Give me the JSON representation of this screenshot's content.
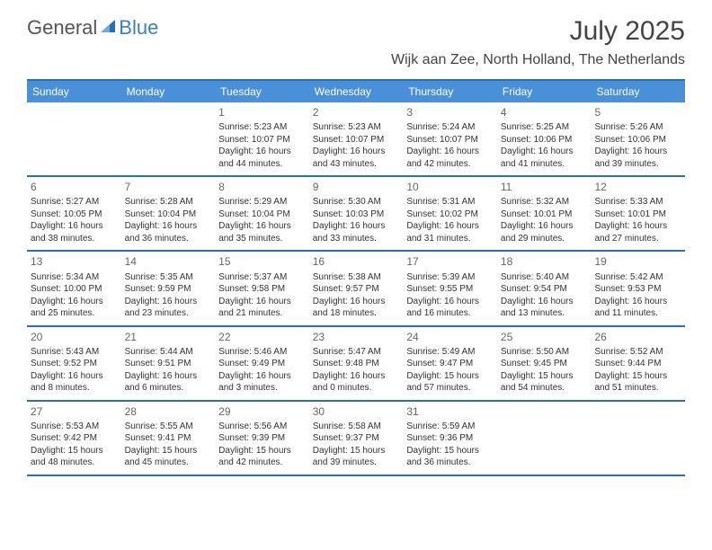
{
  "logo": {
    "text1": "General",
    "text2": "Blue"
  },
  "title": "July 2025",
  "location": "Wijk aan Zee, North Holland, The Netherlands",
  "colors": {
    "header_bg": "#4a90d9",
    "header_text": "#ffffff",
    "border": "#2a6db8",
    "logo_gray": "#555555",
    "logo_blue": "#3a7fc4",
    "title_color": "#444444",
    "cell_text": "#333333",
    "daynum_color": "#666666",
    "background": "#ffffff"
  },
  "dayNames": [
    "Sunday",
    "Monday",
    "Tuesday",
    "Wednesday",
    "Thursday",
    "Friday",
    "Saturday"
  ],
  "weeks": [
    [
      {
        "n": "",
        "sr": "",
        "ss": "",
        "dl": ""
      },
      {
        "n": "",
        "sr": "",
        "ss": "",
        "dl": ""
      },
      {
        "n": "1",
        "sr": "Sunrise: 5:23 AM",
        "ss": "Sunset: 10:07 PM",
        "dl": "Daylight: 16 hours and 44 minutes."
      },
      {
        "n": "2",
        "sr": "Sunrise: 5:23 AM",
        "ss": "Sunset: 10:07 PM",
        "dl": "Daylight: 16 hours and 43 minutes."
      },
      {
        "n": "3",
        "sr": "Sunrise: 5:24 AM",
        "ss": "Sunset: 10:07 PM",
        "dl": "Daylight: 16 hours and 42 minutes."
      },
      {
        "n": "4",
        "sr": "Sunrise: 5:25 AM",
        "ss": "Sunset: 10:06 PM",
        "dl": "Daylight: 16 hours and 41 minutes."
      },
      {
        "n": "5",
        "sr": "Sunrise: 5:26 AM",
        "ss": "Sunset: 10:06 PM",
        "dl": "Daylight: 16 hours and 39 minutes."
      }
    ],
    [
      {
        "n": "6",
        "sr": "Sunrise: 5:27 AM",
        "ss": "Sunset: 10:05 PM",
        "dl": "Daylight: 16 hours and 38 minutes."
      },
      {
        "n": "7",
        "sr": "Sunrise: 5:28 AM",
        "ss": "Sunset: 10:04 PM",
        "dl": "Daylight: 16 hours and 36 minutes."
      },
      {
        "n": "8",
        "sr": "Sunrise: 5:29 AM",
        "ss": "Sunset: 10:04 PM",
        "dl": "Daylight: 16 hours and 35 minutes."
      },
      {
        "n": "9",
        "sr": "Sunrise: 5:30 AM",
        "ss": "Sunset: 10:03 PM",
        "dl": "Daylight: 16 hours and 33 minutes."
      },
      {
        "n": "10",
        "sr": "Sunrise: 5:31 AM",
        "ss": "Sunset: 10:02 PM",
        "dl": "Daylight: 16 hours and 31 minutes."
      },
      {
        "n": "11",
        "sr": "Sunrise: 5:32 AM",
        "ss": "Sunset: 10:01 PM",
        "dl": "Daylight: 16 hours and 29 minutes."
      },
      {
        "n": "12",
        "sr": "Sunrise: 5:33 AM",
        "ss": "Sunset: 10:01 PM",
        "dl": "Daylight: 16 hours and 27 minutes."
      }
    ],
    [
      {
        "n": "13",
        "sr": "Sunrise: 5:34 AM",
        "ss": "Sunset: 10:00 PM",
        "dl": "Daylight: 16 hours and 25 minutes."
      },
      {
        "n": "14",
        "sr": "Sunrise: 5:35 AM",
        "ss": "Sunset: 9:59 PM",
        "dl": "Daylight: 16 hours and 23 minutes."
      },
      {
        "n": "15",
        "sr": "Sunrise: 5:37 AM",
        "ss": "Sunset: 9:58 PM",
        "dl": "Daylight: 16 hours and 21 minutes."
      },
      {
        "n": "16",
        "sr": "Sunrise: 5:38 AM",
        "ss": "Sunset: 9:57 PM",
        "dl": "Daylight: 16 hours and 18 minutes."
      },
      {
        "n": "17",
        "sr": "Sunrise: 5:39 AM",
        "ss": "Sunset: 9:55 PM",
        "dl": "Daylight: 16 hours and 16 minutes."
      },
      {
        "n": "18",
        "sr": "Sunrise: 5:40 AM",
        "ss": "Sunset: 9:54 PM",
        "dl": "Daylight: 16 hours and 13 minutes."
      },
      {
        "n": "19",
        "sr": "Sunrise: 5:42 AM",
        "ss": "Sunset: 9:53 PM",
        "dl": "Daylight: 16 hours and 11 minutes."
      }
    ],
    [
      {
        "n": "20",
        "sr": "Sunrise: 5:43 AM",
        "ss": "Sunset: 9:52 PM",
        "dl": "Daylight: 16 hours and 8 minutes."
      },
      {
        "n": "21",
        "sr": "Sunrise: 5:44 AM",
        "ss": "Sunset: 9:51 PM",
        "dl": "Daylight: 16 hours and 6 minutes."
      },
      {
        "n": "22",
        "sr": "Sunrise: 5:46 AM",
        "ss": "Sunset: 9:49 PM",
        "dl": "Daylight: 16 hours and 3 minutes."
      },
      {
        "n": "23",
        "sr": "Sunrise: 5:47 AM",
        "ss": "Sunset: 9:48 PM",
        "dl": "Daylight: 16 hours and 0 minutes."
      },
      {
        "n": "24",
        "sr": "Sunrise: 5:49 AM",
        "ss": "Sunset: 9:47 PM",
        "dl": "Daylight: 15 hours and 57 minutes."
      },
      {
        "n": "25",
        "sr": "Sunrise: 5:50 AM",
        "ss": "Sunset: 9:45 PM",
        "dl": "Daylight: 15 hours and 54 minutes."
      },
      {
        "n": "26",
        "sr": "Sunrise: 5:52 AM",
        "ss": "Sunset: 9:44 PM",
        "dl": "Daylight: 15 hours and 51 minutes."
      }
    ],
    [
      {
        "n": "27",
        "sr": "Sunrise: 5:53 AM",
        "ss": "Sunset: 9:42 PM",
        "dl": "Daylight: 15 hours and 48 minutes."
      },
      {
        "n": "28",
        "sr": "Sunrise: 5:55 AM",
        "ss": "Sunset: 9:41 PM",
        "dl": "Daylight: 15 hours and 45 minutes."
      },
      {
        "n": "29",
        "sr": "Sunrise: 5:56 AM",
        "ss": "Sunset: 9:39 PM",
        "dl": "Daylight: 15 hours and 42 minutes."
      },
      {
        "n": "30",
        "sr": "Sunrise: 5:58 AM",
        "ss": "Sunset: 9:37 PM",
        "dl": "Daylight: 15 hours and 39 minutes."
      },
      {
        "n": "31",
        "sr": "Sunrise: 5:59 AM",
        "ss": "Sunset: 9:36 PM",
        "dl": "Daylight: 15 hours and 36 minutes."
      },
      {
        "n": "",
        "sr": "",
        "ss": "",
        "dl": ""
      },
      {
        "n": "",
        "sr": "",
        "ss": "",
        "dl": ""
      }
    ]
  ]
}
